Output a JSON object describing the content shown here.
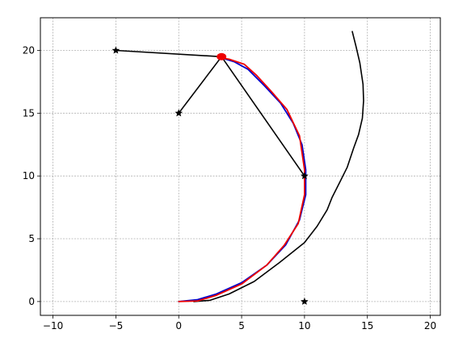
{
  "chart_data": {
    "type": "line",
    "title": "",
    "xlabel": "",
    "ylabel": "",
    "xlim": [
      -11,
      20.8
    ],
    "ylim": [
      -1.1,
      22.6
    ],
    "grid": true,
    "x_ticks": [
      -10,
      -5,
      0,
      5,
      10,
      15,
      20
    ],
    "y_ticks": [
      0,
      5,
      10,
      15,
      20
    ],
    "x_tick_labels": [
      "−10",
      "−5",
      "0",
      "5",
      "10",
      "15",
      "20"
    ],
    "y_tick_labels": [
      "0",
      "5",
      "10",
      "15",
      "20"
    ],
    "landmarks": [
      [
        -5,
        20
      ],
      [
        0,
        15
      ],
      [
        10,
        10
      ],
      [
        10,
        0
      ]
    ],
    "estimate_point": [
      3.4,
      19.5
    ],
    "series": [
      {
        "color": "#000000",
        "values": [
          [
            3.4,
            19.5
          ],
          [
            -5,
            20
          ]
        ]
      },
      {
        "color": "#000000",
        "values": [
          [
            3.4,
            19.5
          ],
          [
            0,
            15
          ]
        ]
      },
      {
        "color": "#000000",
        "values": [
          [
            3.4,
            19.5
          ],
          [
            10,
            10
          ]
        ]
      },
      {
        "color": "#000000",
        "values": [
          [
            1.2,
            0
          ],
          [
            2.5,
            0.1
          ],
          [
            4,
            0.6
          ],
          [
            6,
            1.6
          ],
          [
            8,
            3.1
          ],
          [
            10,
            4.7
          ],
          [
            11,
            6
          ],
          [
            11.8,
            7.3
          ],
          [
            12.2,
            8.3
          ],
          [
            12.8,
            9.5
          ],
          [
            13.4,
            10.7
          ],
          [
            13.9,
            12.2
          ],
          [
            14.3,
            13.3
          ],
          [
            14.6,
            14.6
          ],
          [
            14.7,
            16
          ],
          [
            14.65,
            17.3
          ],
          [
            14.4,
            19
          ],
          [
            14.1,
            20.3
          ],
          [
            13.8,
            21.5
          ]
        ]
      },
      {
        "color": "#0000cc",
        "values": [
          [
            0,
            0
          ],
          [
            1.5,
            0.15
          ],
          [
            3,
            0.6
          ],
          [
            5,
            1.5
          ],
          [
            7,
            2.9
          ],
          [
            8.5,
            4.5
          ],
          [
            9.6,
            6.5
          ],
          [
            10.1,
            8.5
          ],
          [
            10.1,
            10.5
          ],
          [
            9.8,
            12.5
          ],
          [
            9.1,
            14.2
          ],
          [
            8.1,
            15.8
          ],
          [
            6.8,
            17.2
          ],
          [
            5.5,
            18.5
          ],
          [
            4.4,
            19.1
          ],
          [
            3.4,
            19.4
          ]
        ]
      },
      {
        "color": "#ee0000",
        "values": [
          [
            0,
            0
          ],
          [
            1.5,
            0.05
          ],
          [
            3,
            0.5
          ],
          [
            5,
            1.4
          ],
          [
            7,
            2.9
          ],
          [
            8.4,
            4.5
          ],
          [
            9.5,
            6.2
          ],
          [
            10.0,
            8.5
          ],
          [
            10.0,
            10.5
          ],
          [
            9.6,
            13.2
          ],
          [
            8.6,
            15.3
          ],
          [
            7.3,
            16.8
          ],
          [
            6.2,
            18
          ],
          [
            5.2,
            18.9
          ],
          [
            4.0,
            19.3
          ],
          [
            3.4,
            19.4
          ]
        ]
      }
    ]
  }
}
